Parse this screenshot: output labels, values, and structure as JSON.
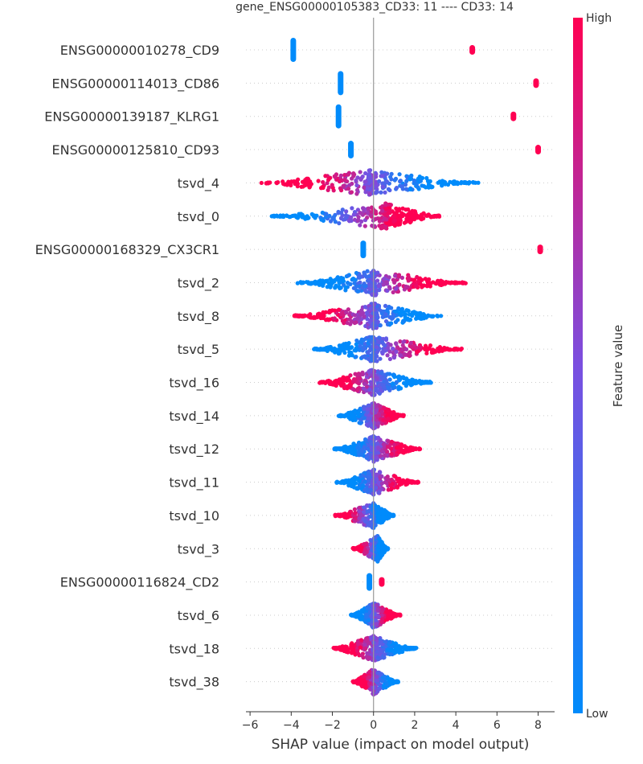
{
  "chart_data": {
    "type": "scatter",
    "subtype": "beeswarm",
    "title": "gene_ENSG00000105383_CD33: 11 ---- CD33: 14",
    "xlabel": "SHAP value (impact on model output)",
    "ylabel": "",
    "xlim": [
      -6.2,
      8.8
    ],
    "xticks": [
      -6,
      -4,
      -2,
      0,
      2,
      4,
      6,
      8
    ],
    "xtick_labels": [
      "−6",
      "−4",
      "−2",
      "0",
      "2",
      "4",
      "6",
      "8"
    ],
    "colorbar": {
      "label": "Feature value",
      "high_label": "High",
      "low_label": "Low",
      "low_color": "#008bfb",
      "high_color": "#ff0052"
    },
    "grid": false,
    "features": [
      {
        "name": "ENSG00000010278_CD9",
        "kind": "binary",
        "low_value": -3.9,
        "high_value": 4.8
      },
      {
        "name": "ENSG00000114013_CD86",
        "kind": "binary",
        "low_value": -1.6,
        "high_value": 7.9
      },
      {
        "name": "ENSG00000139187_KLRG1",
        "kind": "binary",
        "low_value": -1.7,
        "high_value": 6.8
      },
      {
        "name": "ENSG00000125810_CD93",
        "kind": "binary",
        "low_value": -1.1,
        "high_value": 8.0
      },
      {
        "name": "tsvd_4",
        "kind": "continuous",
        "min": -5.5,
        "max": 5.1,
        "center": -0.2,
        "high_side": "left",
        "spread_left": 2.6,
        "spread_right": 2.4
      },
      {
        "name": "tsvd_0",
        "kind": "continuous",
        "min": -5.0,
        "max": 3.2,
        "center": 0.6,
        "high_side": "right",
        "spread_left": 2.4,
        "spread_right": 1.3
      },
      {
        "name": "ENSG00000168329_CX3CR1",
        "kind": "binary",
        "low_value": -0.5,
        "high_value": 8.1
      },
      {
        "name": "tsvd_2",
        "kind": "continuous",
        "min": -3.7,
        "max": 4.5,
        "center": 0.0,
        "high_side": "right",
        "spread_left": 1.5,
        "spread_right": 1.8
      },
      {
        "name": "tsvd_8",
        "kind": "continuous",
        "min": -3.9,
        "max": 3.3,
        "center": 0.0,
        "high_side": "left",
        "spread_left": 1.5,
        "spread_right": 1.2
      },
      {
        "name": "tsvd_5",
        "kind": "continuous",
        "min": -2.9,
        "max": 4.3,
        "center": 0.0,
        "high_side": "right",
        "spread_left": 1.1,
        "spread_right": 1.6
      },
      {
        "name": "tsvd_16",
        "kind": "continuous",
        "min": -2.8,
        "max": 2.8,
        "center": 0.0,
        "high_side": "left",
        "spread_left": 1.0,
        "spread_right": 0.9
      },
      {
        "name": "tsvd_14",
        "kind": "continuous",
        "min": -1.7,
        "max": 1.5,
        "center": 0.0,
        "high_side": "right",
        "spread_left": 0.6,
        "spread_right": 0.6
      },
      {
        "name": "tsvd_12",
        "kind": "continuous",
        "min": -1.9,
        "max": 2.3,
        "center": 0.0,
        "high_side": "right",
        "spread_left": 0.6,
        "spread_right": 0.8
      },
      {
        "name": "tsvd_11",
        "kind": "continuous",
        "min": -1.8,
        "max": 2.2,
        "center": 0.0,
        "high_side": "right",
        "spread_left": 0.6,
        "spread_right": 0.7
      },
      {
        "name": "tsvd_10",
        "kind": "continuous",
        "min": -1.9,
        "max": 1.0,
        "center": 0.0,
        "high_side": "left",
        "spread_left": 0.6,
        "spread_right": 0.4
      },
      {
        "name": "tsvd_3",
        "kind": "continuous",
        "min": -1.0,
        "max": 0.7,
        "center": 0.2,
        "high_side": "left",
        "spread_left": 0.4,
        "spread_right": 0.2
      },
      {
        "name": "ENSG00000116824_CD2",
        "kind": "binary",
        "low_value": -0.2,
        "high_value": 0.4
      },
      {
        "name": "tsvd_6",
        "kind": "continuous",
        "min": -1.1,
        "max": 1.3,
        "center": 0.0,
        "high_side": "right",
        "spread_left": 0.3,
        "spread_right": 0.4
      },
      {
        "name": "tsvd_18",
        "kind": "continuous",
        "min": -2.0,
        "max": 2.1,
        "center": 0.0,
        "high_side": "left",
        "spread_left": 0.5,
        "spread_right": 0.5
      },
      {
        "name": "tsvd_38",
        "kind": "continuous",
        "min": -1.0,
        "max": 1.2,
        "center": 0.0,
        "high_side": "left",
        "spread_left": 0.3,
        "spread_right": 0.3
      }
    ]
  }
}
